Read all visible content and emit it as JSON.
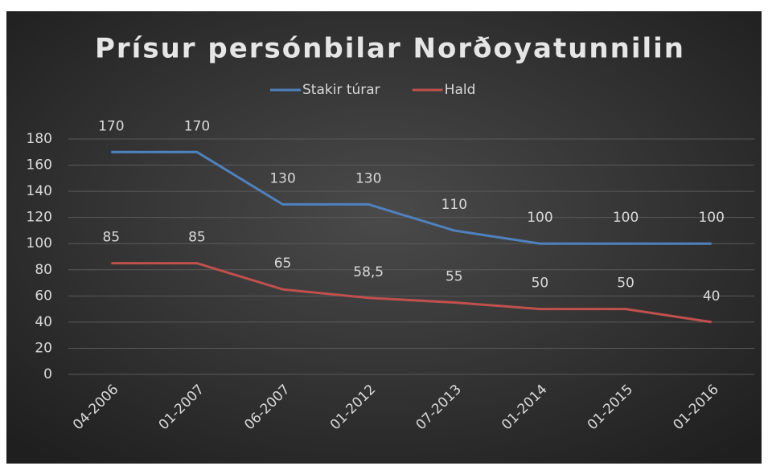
{
  "chart_data": {
    "type": "line",
    "title": "Prísur persónbilar Norðoyatunnilin",
    "categories": [
      "04-2006",
      "01-2007",
      "06-2007",
      "01-2012",
      "07-2013",
      "01-2014",
      "01-2015",
      "01-2016"
    ],
    "series": [
      {
        "name": "Stakir túrar",
        "color": "#4f81bd",
        "values": [
          170,
          170,
          130,
          130,
          110,
          100,
          100,
          100
        ]
      },
      {
        "name": "Hald",
        "color": "#c0504d",
        "values": [
          85,
          85,
          65,
          58.5,
          55,
          50,
          50,
          40
        ],
        "value_labels": [
          "85",
          "85",
          "65",
          "58,5",
          "55",
          "50",
          "50",
          "40"
        ]
      }
    ],
    "ylim": [
      0,
      180
    ],
    "yticks": [
      0,
      20,
      40,
      60,
      80,
      100,
      120,
      140,
      160,
      180
    ],
    "grid": true,
    "legend": "top"
  }
}
